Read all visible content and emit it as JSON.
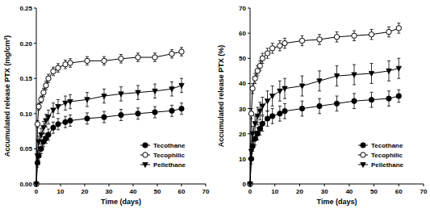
{
  "chart_data": [
    {
      "type": "line",
      "y_label": "Accumulated release PTX (mg/cm²)",
      "x_label": "Time (days)",
      "x": [
        0,
        0.5,
        1,
        2,
        3,
        4,
        5,
        7,
        9,
        12,
        14,
        21,
        28,
        35,
        42,
        49,
        56,
        60
      ],
      "series": [
        {
          "name": "Tecothane",
          "color": "#000000",
          "marker": "circle",
          "line_style": "solid",
          "values": [
            0,
            0.03,
            0.04,
            0.05,
            0.06,
            0.065,
            0.07,
            0.08,
            0.085,
            0.088,
            0.09,
            0.093,
            0.095,
            0.098,
            0.1,
            0.102,
            0.104,
            0.107
          ],
          "errors": [
            0,
            0.006,
            0.006,
            0.007,
            0.007,
            0.007,
            0.008,
            0.008,
            0.008,
            0.008,
            0.008,
            0.008,
            0.008,
            0.008,
            0.008,
            0.008,
            0.008,
            0.008
          ]
        },
        {
          "name": "Tecophilic",
          "color": "#000000",
          "marker": "open-circle",
          "line_style": "solid",
          "values": [
            0,
            0.085,
            0.11,
            0.12,
            0.13,
            0.14,
            0.15,
            0.16,
            0.165,
            0.17,
            0.172,
            0.175,
            0.175,
            0.178,
            0.18,
            0.18,
            0.185,
            0.188
          ],
          "errors": [
            0,
            0.005,
            0.005,
            0.005,
            0.006,
            0.006,
            0.006,
            0.006,
            0.006,
            0.006,
            0.006,
            0.006,
            0.006,
            0.006,
            0.006,
            0.006,
            0.006,
            0.006
          ]
        },
        {
          "name": "Pellethane",
          "color": "#000000",
          "marker": "triangle-down",
          "line_style": "solid",
          "values": [
            0,
            0.04,
            0.06,
            0.07,
            0.08,
            0.09,
            0.095,
            0.105,
            0.11,
            0.115,
            0.117,
            0.12,
            0.125,
            0.128,
            0.13,
            0.132,
            0.135,
            0.14
          ],
          "errors": [
            0,
            0.008,
            0.008,
            0.009,
            0.009,
            0.009,
            0.01,
            0.01,
            0.01,
            0.01,
            0.01,
            0.01,
            0.01,
            0.01,
            0.01,
            0.01,
            0.01,
            0.01
          ]
        }
      ],
      "xlim": [
        0,
        70
      ],
      "xticks": [
        0,
        10,
        20,
        30,
        40,
        50,
        60,
        70
      ],
      "ylim": [
        0,
        0.25
      ],
      "yticks": [
        {
          "value": 0,
          "label": "0.00"
        },
        {
          "value": 0.05,
          "label": "0.05"
        },
        {
          "value": 0.1,
          "label": "0.10"
        },
        {
          "value": 0.15,
          "label": "0.15"
        },
        {
          "value": 0.2,
          "label": "0.20"
        },
        {
          "value": 0.25,
          "label": "0.25"
        }
      ],
      "legend": "lower right"
    },
    {
      "type": "line",
      "y_label": "Accumulated release PTX (%)",
      "x_label": "Time (days)",
      "x": [
        0,
        0.5,
        1,
        2,
        3,
        4,
        5,
        7,
        9,
        12,
        14,
        21,
        28,
        35,
        42,
        49,
        56,
        60
      ],
      "series": [
        {
          "name": "Tecothane",
          "color": "#000000",
          "marker": "circle",
          "line_style": "solid",
          "values": [
            0,
            10,
            15,
            18,
            20,
            22,
            24,
            26,
            27,
            28,
            29,
            30,
            31,
            32,
            33,
            33.5,
            34,
            35
          ],
          "errors": [
            0,
            2,
            2,
            2.5,
            2.5,
            2.5,
            3,
            3,
            3,
            3,
            3,
            3,
            3,
            3,
            3,
            3,
            3,
            2.5
          ]
        },
        {
          "name": "Tecophilic",
          "color": "#000000",
          "marker": "open-circle",
          "line_style": "solid",
          "values": [
            0,
            28,
            38,
            42,
            45,
            47,
            50,
            52,
            54,
            55,
            56,
            57,
            57.5,
            58.5,
            59,
            59.5,
            60.5,
            62
          ],
          "errors": [
            0,
            2,
            2,
            2,
            2,
            2,
            2,
            2,
            2,
            2,
            2,
            2,
            2,
            2,
            2,
            2,
            2,
            2
          ]
        },
        {
          "name": "Pellethane",
          "color": "#000000",
          "marker": "triangle-down",
          "line_style": "solid",
          "values": [
            0,
            13,
            20,
            24,
            27,
            29,
            31,
            33,
            35,
            37,
            38,
            39,
            41,
            43,
            43.5,
            44,
            45,
            46
          ],
          "errors": [
            0,
            3,
            3,
            3,
            3.5,
            3.5,
            3.5,
            4,
            4,
            4,
            4,
            4,
            4,
            4,
            4,
            4,
            4,
            4
          ]
        }
      ],
      "xlim": [
        0,
        70
      ],
      "xticks": [
        0,
        10,
        20,
        30,
        40,
        50,
        60,
        70
      ],
      "ylim": [
        0,
        70
      ],
      "yticks": [
        0,
        10,
        20,
        30,
        40,
        50,
        60,
        70
      ],
      "legend": "lower right"
    }
  ]
}
